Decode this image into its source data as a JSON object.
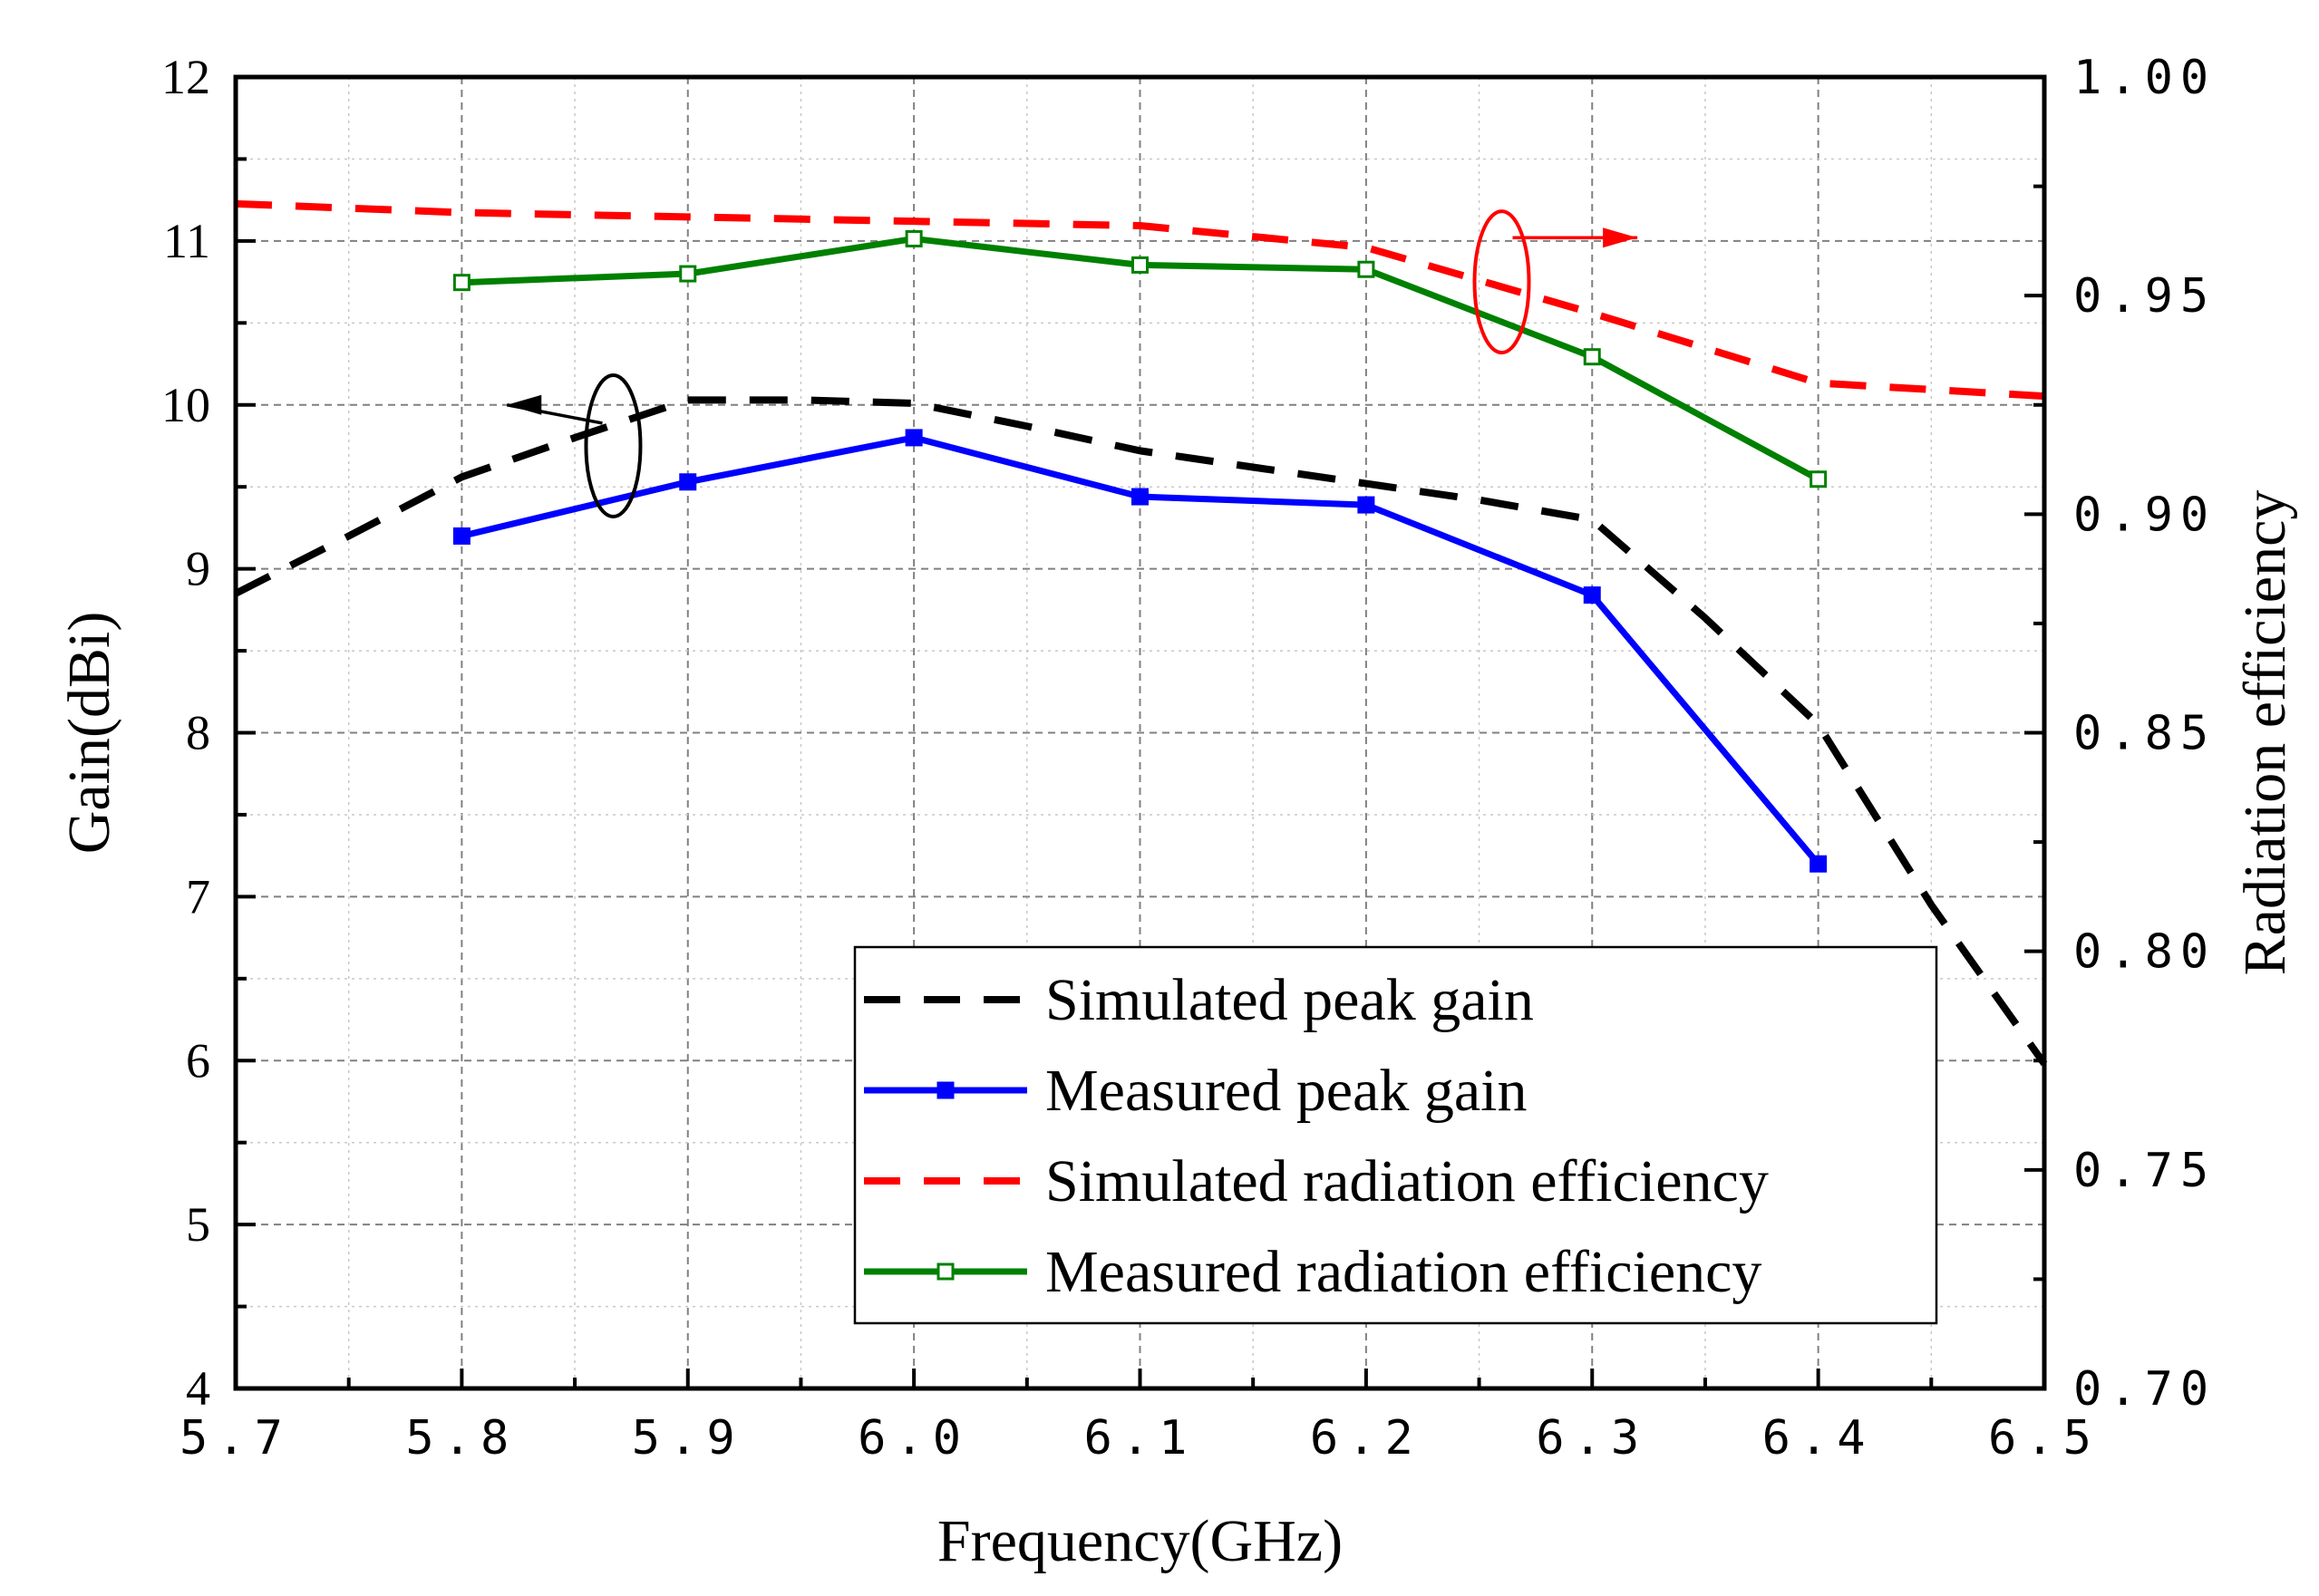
{
  "chart_data": {
    "type": "line",
    "title": "",
    "xlabel": "Frequency(GHz)",
    "ylabel_left": "Gain(dBi)",
    "ylabel_right": "Radiation efficiency",
    "xlim": [
      5.7,
      6.5
    ],
    "ylim_left": [
      4,
      12
    ],
    "ylim_right": [
      0.7,
      1.0
    ],
    "x_ticks": [
      "5.7",
      "5.8",
      "5.9",
      "6.0",
      "6.1",
      "6.2",
      "6.3",
      "6.4",
      "6.5"
    ],
    "y_left_ticks": [
      "4",
      "5",
      "6",
      "7",
      "8",
      "9",
      "10",
      "11",
      "12"
    ],
    "y_right_ticks": [
      "0.70",
      "0.75",
      "0.80",
      "0.85",
      "0.90",
      "0.95",
      "1.00"
    ],
    "grid": true,
    "legend_position": "bottom-right",
    "series": [
      {
        "name": "Simulated peak gain",
        "axis": "left",
        "color": "#000000",
        "style": "dashed",
        "marker": "none",
        "x": [
          5.7,
          5.75,
          5.8,
          5.85,
          5.9,
          5.95,
          6.0,
          6.05,
          6.1,
          6.15,
          6.2,
          6.25,
          6.3,
          6.35,
          6.4,
          6.45,
          6.5
        ],
        "values": [
          8.85,
          9.2,
          9.56,
          9.8,
          10.03,
          10.03,
          10.01,
          9.87,
          9.72,
          9.62,
          9.52,
          9.42,
          9.3,
          8.7,
          8.05,
          6.95,
          5.98
        ]
      },
      {
        "name": "Measured peak gain",
        "axis": "left",
        "color": "#0000ff",
        "style": "solid",
        "marker": "square-filled",
        "x": [
          5.8,
          5.9,
          6.0,
          6.1,
          6.2,
          6.3,
          6.4
        ],
        "values": [
          9.2,
          9.53,
          9.8,
          9.44,
          9.39,
          8.84,
          7.2
        ]
      },
      {
        "name": "Simulated radiation efficiency",
        "axis": "right",
        "color": "#ff0000",
        "style": "dashed",
        "marker": "none",
        "x": [
          5.7,
          5.8,
          5.9,
          6.0,
          6.1,
          6.2,
          6.3,
          6.4,
          6.5
        ],
        "values": [
          0.971,
          0.969,
          0.968,
          0.967,
          0.966,
          0.961,
          0.946,
          0.93,
          0.927
        ]
      },
      {
        "name": "Measured radiation efficiency",
        "axis": "right",
        "color": "#008000",
        "style": "solid",
        "marker": "square-open",
        "x": [
          5.8,
          5.9,
          6.0,
          6.1,
          6.2,
          6.3,
          6.4
        ],
        "values": [
          0.953,
          0.955,
          0.963,
          0.957,
          0.956,
          0.936,
          0.908
        ]
      }
    ],
    "annotations": [
      {
        "type": "ellipse-arrow",
        "color": "#000000",
        "points_to": "left axis",
        "at_x": 5.867,
        "at_y_left": 9.75,
        "arrow_to_x": 5.82,
        "arrow_to_y_left": 10.0
      },
      {
        "type": "ellipse-arrow",
        "color": "#ff0000",
        "points_to": "right axis",
        "at_x": 6.26,
        "at_y_left": 10.75,
        "arrow_to_x": 6.32,
        "arrow_to_y_left": 11.02
      }
    ]
  }
}
